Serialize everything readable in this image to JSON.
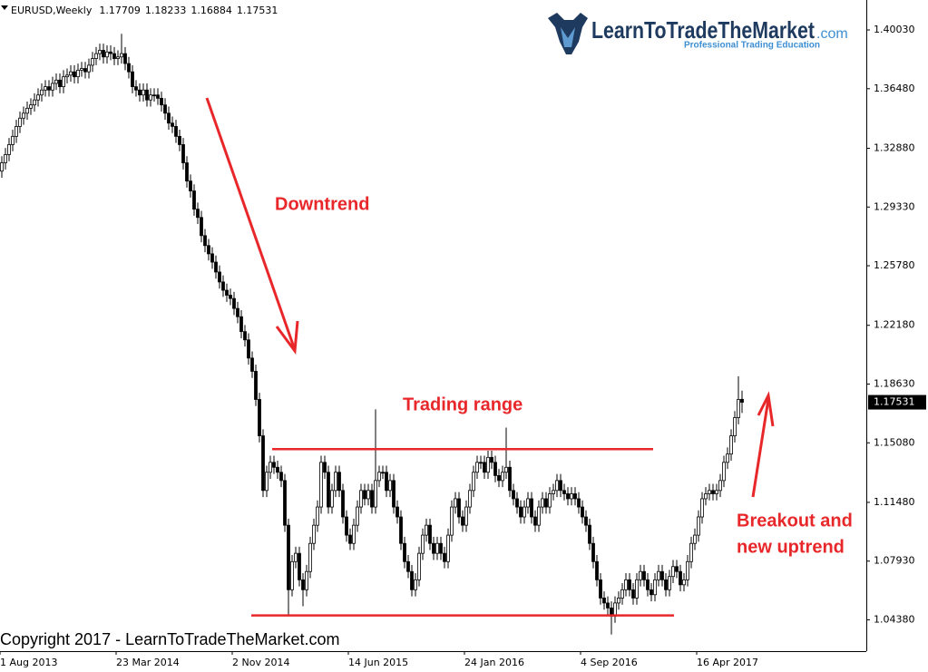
{
  "chart_data": {
    "type": "candlestick",
    "symbol": "EURUSD,Weekly",
    "annotations": {
      "downtrend": "Downtrend",
      "range": "Trading range",
      "breakout": [
        "Breakout and",
        "new uptrend"
      ]
    },
    "copyright": "Copyright 2017 - LearnToTradeTheMarket.com",
    "logo": {
      "name": "LearnToTradeTheMarket",
      "domain": ".com",
      "tagline": "Professional Trading Education"
    },
    "color": "#000000",
    "level_color": "#e8272a",
    "levels": [
      1.147,
      1.0465
    ],
    "ylim": [
      1.0249,
      1.4184
    ],
    "yticks": [
      {
        "value": 1.4003,
        "label": "1.40030"
      },
      {
        "value": 1.3648,
        "label": "1.36480"
      },
      {
        "value": 1.3288,
        "label": "1.32880"
      },
      {
        "value": 1.2933,
        "label": "1.29330"
      },
      {
        "value": 1.2578,
        "label": "1.25780"
      },
      {
        "value": 1.2218,
        "label": "1.22180"
      },
      {
        "value": 1.1863,
        "label": "1.18630"
      },
      {
        "value": 1.1508,
        "label": "1.15080"
      },
      {
        "value": 1.1148,
        "label": "1.11480"
      },
      {
        "value": 1.0793,
        "label": "1.07930"
      },
      {
        "value": 1.0438,
        "label": "1.04380"
      }
    ],
    "categories": [
      "1 Aug 2013",
      null,
      null,
      null,
      null,
      null,
      null,
      null,
      null,
      null,
      null,
      null,
      null,
      null,
      null,
      null,
      null,
      null,
      null,
      null,
      null,
      null,
      null,
      null,
      null,
      null,
      null,
      null,
      null,
      null,
      null,
      null,
      "23 Mar 2014",
      null,
      null,
      null,
      null,
      null,
      null,
      null,
      null,
      null,
      null,
      null,
      null,
      null,
      null,
      null,
      null,
      null,
      null,
      null,
      null,
      null,
      null,
      null,
      null,
      null,
      null,
      null,
      null,
      null,
      null,
      null,
      "2 Nov 2014",
      null,
      null,
      null,
      null,
      null,
      null,
      null,
      null,
      null,
      null,
      null,
      null,
      null,
      null,
      null,
      null,
      null,
      null,
      null,
      null,
      null,
      null,
      null,
      null,
      null,
      null,
      null,
      null,
      null,
      null,
      null,
      "14 Jun 2015",
      null,
      null,
      null,
      null,
      null,
      null,
      null,
      null,
      null,
      null,
      null,
      null,
      null,
      null,
      null,
      null,
      null,
      null,
      null,
      null,
      null,
      null,
      null,
      null,
      null,
      null,
      null,
      null,
      null,
      null,
      null,
      "24 Jan 2016",
      null,
      null,
      null,
      null,
      null,
      null,
      null,
      null,
      null,
      null,
      null,
      null,
      null,
      null,
      null,
      null,
      null,
      null,
      null,
      null,
      null,
      null,
      null,
      null,
      null,
      null,
      null,
      null,
      null,
      null,
      null,
      "4 Sep 2016",
      null,
      null,
      null,
      null,
      null,
      null,
      null,
      null,
      null,
      null,
      null,
      null,
      null,
      null,
      null,
      null,
      null,
      null,
      null,
      null,
      null,
      null,
      null,
      null,
      null,
      null,
      null,
      null,
      null,
      null,
      null,
      "16 Apr 2017",
      null,
      null,
      null,
      null,
      null,
      null,
      null,
      null,
      null,
      null,
      null,
      null
    ],
    "open": [
      1.315,
      1.32,
      1.325,
      1.331,
      1.336,
      1.342,
      1.347,
      1.35,
      1.353,
      1.355,
      1.358,
      1.361,
      1.364,
      1.366,
      1.364,
      1.368,
      1.37,
      1.366,
      1.372,
      1.373,
      1.375,
      1.372,
      1.376,
      1.377,
      1.375,
      1.379,
      1.383,
      1.386,
      1.388,
      1.384,
      1.387,
      1.386,
      1.383,
      1.384,
      1.386,
      1.38,
      1.375,
      1.366,
      1.364,
      1.361,
      1.364,
      1.358,
      1.361,
      1.361,
      1.359,
      1.355,
      1.35,
      1.344,
      1.342,
      1.336,
      1.331,
      1.32,
      1.309,
      1.303,
      1.292,
      1.287,
      1.276,
      1.27,
      1.265,
      1.26,
      1.254,
      1.248,
      1.243,
      1.24,
      1.238,
      1.232,
      1.227,
      1.218,
      1.213,
      1.202,
      1.194,
      1.177,
      1.155,
      1.122,
      1.133,
      1.139,
      1.136,
      1.133,
      1.128,
      1.101,
      1.062,
      1.079,
      1.084,
      1.068,
      1.062,
      1.073,
      1.09,
      1.101,
      1.112,
      1.139,
      1.133,
      1.112,
      1.122,
      1.133,
      1.122,
      1.106,
      1.095,
      1.09,
      1.101,
      1.112,
      1.122,
      1.117,
      1.122,
      1.112,
      1.128,
      1.133,
      1.133,
      1.122,
      1.128,
      1.112,
      1.106,
      1.09,
      1.079,
      1.073,
      1.062,
      1.068,
      1.084,
      1.095,
      1.101,
      1.09,
      1.084,
      1.09,
      1.084,
      1.079,
      1.095,
      1.112,
      1.117,
      1.106,
      1.101,
      1.112,
      1.122,
      1.133,
      1.139,
      1.139,
      1.133,
      1.142,
      1.139,
      1.131,
      1.128,
      1.133,
      1.136,
      1.122,
      1.117,
      1.112,
      1.106,
      1.112,
      1.117,
      1.106,
      1.101,
      1.112,
      1.117,
      1.112,
      1.12,
      1.122,
      1.128,
      1.122,
      1.12,
      1.117,
      1.12,
      1.117,
      1.112,
      1.106,
      1.101,
      1.09,
      1.079,
      1.068,
      1.057,
      1.054,
      1.051,
      1.046,
      1.054,
      1.057,
      1.062,
      1.068,
      1.062,
      1.057,
      1.068,
      1.073,
      1.068,
      1.062,
      1.059,
      1.068,
      1.073,
      1.068,
      1.062,
      1.07,
      1.076,
      1.073,
      1.065,
      1.068,
      1.079,
      1.09,
      1.095,
      1.106,
      1.117,
      1.12,
      1.122,
      1.12,
      1.122,
      1.128,
      1.139,
      1.144,
      1.155,
      1.166,
      1.17709
    ],
    "high": [
      1.324,
      1.329,
      1.335,
      1.34,
      1.346,
      1.351,
      1.354,
      1.357,
      1.359,
      1.362,
      1.365,
      1.368,
      1.37,
      1.37,
      1.372,
      1.374,
      1.374,
      1.376,
      1.377,
      1.379,
      1.379,
      1.38,
      1.381,
      1.381,
      1.383,
      1.387,
      1.39,
      1.392,
      1.392,
      1.391,
      1.391,
      1.39,
      1.388,
      1.398,
      1.39,
      1.384,
      1.379,
      1.37,
      1.368,
      1.368,
      1.368,
      1.365,
      1.365,
      1.365,
      1.363,
      1.359,
      1.354,
      1.348,
      1.346,
      1.34,
      1.335,
      1.324,
      1.313,
      1.307,
      1.296,
      1.291,
      1.28,
      1.274,
      1.269,
      1.264,
      1.258,
      1.252,
      1.247,
      1.244,
      1.242,
      1.236,
      1.231,
      1.222,
      1.217,
      1.206,
      1.198,
      1.181,
      1.159,
      1.137,
      1.143,
      1.143,
      1.14,
      1.137,
      1.132,
      1.105,
      1.083,
      1.088,
      1.088,
      1.072,
      1.077,
      1.094,
      1.105,
      1.116,
      1.143,
      1.143,
      1.137,
      1.126,
      1.137,
      1.137,
      1.126,
      1.11,
      1.099,
      1.105,
      1.116,
      1.126,
      1.126,
      1.126,
      1.126,
      1.171,
      1.137,
      1.137,
      1.137,
      1.132,
      1.132,
      1.116,
      1.11,
      1.094,
      1.083,
      1.077,
      1.072,
      1.088,
      1.099,
      1.105,
      1.105,
      1.094,
      1.094,
      1.094,
      1.088,
      1.099,
      1.116,
      1.121,
      1.121,
      1.11,
      1.116,
      1.126,
      1.137,
      1.143,
      1.143,
      1.143,
      1.146,
      1.146,
      1.143,
      1.135,
      1.137,
      1.16,
      1.14,
      1.126,
      1.121,
      1.116,
      1.116,
      1.121,
      1.121,
      1.11,
      1.116,
      1.121,
      1.121,
      1.124,
      1.126,
      1.132,
      1.132,
      1.126,
      1.124,
      1.124,
      1.124,
      1.121,
      1.116,
      1.11,
      1.105,
      1.094,
      1.083,
      1.072,
      1.061,
      1.058,
      1.055,
      1.058,
      1.061,
      1.066,
      1.072,
      1.072,
      1.066,
      1.072,
      1.077,
      1.077,
      1.072,
      1.066,
      1.072,
      1.077,
      1.077,
      1.072,
      1.074,
      1.08,
      1.08,
      1.077,
      1.072,
      1.083,
      1.094,
      1.099,
      1.11,
      1.121,
      1.124,
      1.126,
      1.126,
      1.126,
      1.132,
      1.143,
      1.148,
      1.159,
      1.17,
      1.191,
      1.18233
    ],
    "low": [
      1.311,
      1.316,
      1.321,
      1.327,
      1.332,
      1.338,
      1.343,
      1.346,
      1.349,
      1.351,
      1.354,
      1.357,
      1.36,
      1.36,
      1.36,
      1.364,
      1.362,
      1.362,
      1.368,
      1.369,
      1.368,
      1.368,
      1.372,
      1.371,
      1.371,
      1.375,
      1.379,
      1.382,
      1.38,
      1.38,
      1.382,
      1.379,
      1.379,
      1.38,
      1.376,
      1.371,
      1.362,
      1.36,
      1.357,
      1.357,
      1.354,
      1.354,
      1.357,
      1.355,
      1.351,
      1.346,
      1.34,
      1.338,
      1.332,
      1.327,
      1.316,
      1.305,
      1.299,
      1.288,
      1.283,
      1.272,
      1.266,
      1.261,
      1.256,
      1.25,
      1.244,
      1.239,
      1.236,
      1.234,
      1.228,
      1.223,
      1.214,
      1.209,
      1.198,
      1.19,
      1.173,
      1.151,
      1.118,
      1.118,
      1.129,
      1.132,
      1.129,
      1.124,
      1.097,
      1.046,
      1.058,
      1.075,
      1.064,
      1.052,
      1.058,
      1.069,
      1.086,
      1.097,
      1.108,
      1.129,
      1.108,
      1.108,
      1.118,
      1.118,
      1.102,
      1.091,
      1.086,
      1.086,
      1.097,
      1.108,
      1.113,
      1.113,
      1.108,
      1.108,
      1.124,
      1.129,
      1.118,
      1.118,
      1.108,
      1.102,
      1.086,
      1.075,
      1.069,
      1.058,
      1.058,
      1.064,
      1.08,
      1.091,
      1.086,
      1.08,
      1.08,
      1.08,
      1.075,
      1.075,
      1.091,
      1.108,
      1.102,
      1.097,
      1.097,
      1.108,
      1.118,
      1.129,
      1.135,
      1.129,
      1.129,
      1.135,
      1.127,
      1.124,
      1.124,
      1.129,
      1.118,
      1.113,
      1.108,
      1.102,
      1.102,
      1.108,
      1.102,
      1.097,
      1.097,
      1.108,
      1.108,
      1.108,
      1.116,
      1.118,
      1.118,
      1.116,
      1.113,
      1.113,
      1.113,
      1.108,
      1.102,
      1.097,
      1.086,
      1.075,
      1.064,
      1.053,
      1.05,
      1.047,
      1.035,
      1.042,
      1.05,
      1.053,
      1.058,
      1.058,
      1.053,
      1.053,
      1.064,
      1.064,
      1.058,
      1.055,
      1.055,
      1.064,
      1.064,
      1.058,
      1.058,
      1.066,
      1.069,
      1.061,
      1.061,
      1.064,
      1.075,
      1.086,
      1.091,
      1.102,
      1.113,
      1.116,
      1.116,
      1.116,
      1.118,
      1.124,
      1.135,
      1.14,
      1.151,
      1.162,
      1.16884
    ],
    "close": [
      1.32,
      1.325,
      1.331,
      1.336,
      1.342,
      1.347,
      1.35,
      1.353,
      1.355,
      1.358,
      1.361,
      1.364,
      1.366,
      1.364,
      1.368,
      1.37,
      1.366,
      1.372,
      1.373,
      1.375,
      1.372,
      1.376,
      1.377,
      1.375,
      1.379,
      1.383,
      1.386,
      1.388,
      1.384,
      1.387,
      1.386,
      1.383,
      1.384,
      1.386,
      1.38,
      1.375,
      1.366,
      1.364,
      1.361,
      1.364,
      1.358,
      1.361,
      1.361,
      1.359,
      1.355,
      1.35,
      1.344,
      1.342,
      1.336,
      1.331,
      1.32,
      1.309,
      1.303,
      1.292,
      1.287,
      1.276,
      1.27,
      1.265,
      1.26,
      1.254,
      1.248,
      1.243,
      1.24,
      1.238,
      1.232,
      1.227,
      1.218,
      1.213,
      1.202,
      1.194,
      1.177,
      1.155,
      1.122,
      1.133,
      1.139,
      1.136,
      1.133,
      1.128,
      1.101,
      1.062,
      1.079,
      1.084,
      1.068,
      1.062,
      1.073,
      1.09,
      1.101,
      1.112,
      1.139,
      1.133,
      1.112,
      1.122,
      1.133,
      1.122,
      1.106,
      1.095,
      1.09,
      1.101,
      1.112,
      1.122,
      1.117,
      1.122,
      1.112,
      1.128,
      1.133,
      1.133,
      1.122,
      1.128,
      1.112,
      1.106,
      1.09,
      1.079,
      1.073,
      1.062,
      1.068,
      1.084,
      1.095,
      1.101,
      1.09,
      1.084,
      1.09,
      1.084,
      1.079,
      1.095,
      1.112,
      1.117,
      1.106,
      1.101,
      1.112,
      1.122,
      1.133,
      1.139,
      1.139,
      1.133,
      1.142,
      1.139,
      1.131,
      1.128,
      1.133,
      1.136,
      1.122,
      1.117,
      1.112,
      1.106,
      1.112,
      1.117,
      1.106,
      1.101,
      1.112,
      1.117,
      1.112,
      1.12,
      1.122,
      1.128,
      1.122,
      1.12,
      1.117,
      1.12,
      1.117,
      1.112,
      1.106,
      1.101,
      1.09,
      1.079,
      1.068,
      1.057,
      1.054,
      1.051,
      1.046,
      1.054,
      1.057,
      1.062,
      1.068,
      1.062,
      1.057,
      1.068,
      1.073,
      1.068,
      1.062,
      1.059,
      1.068,
      1.073,
      1.068,
      1.062,
      1.07,
      1.076,
      1.073,
      1.065,
      1.068,
      1.079,
      1.09,
      1.095,
      1.106,
      1.117,
      1.12,
      1.122,
      1.12,
      1.122,
      1.128,
      1.139,
      1.144,
      1.155,
      1.166,
      1.177,
      1.17531
    ]
  }
}
